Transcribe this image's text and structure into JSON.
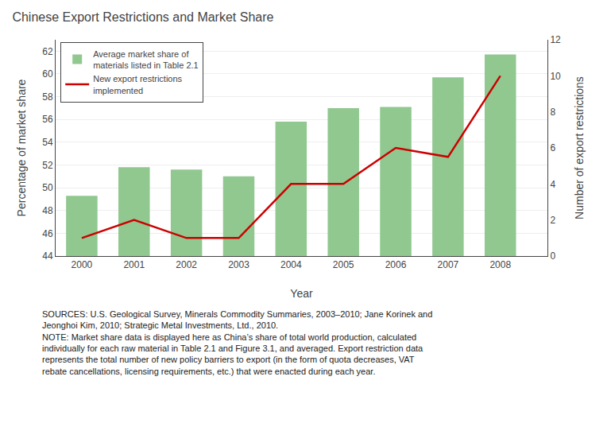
{
  "chart_data": {
    "type": "bar",
    "title": "Chinese Export Restrictions and Market Share",
    "x": [
      2000,
      2001,
      2002,
      2003,
      2004,
      2005,
      2006,
      2007,
      2008
    ],
    "series": [
      {
        "name": "Average market share of\nmaterials listed in Table 2.1",
        "type": "bar",
        "color": "#90C890",
        "values": [
          49.3,
          51.8,
          51.6,
          51.0,
          55.8,
          57.0,
          57.1,
          59.7,
          61.7
        ]
      },
      {
        "name": "New export restrictions\nimplemented",
        "type": "line",
        "axis": "y2",
        "color": "#CC0000",
        "values": [
          1.0,
          2.0,
          1.0,
          1.0,
          4.0,
          4.0,
          6.0,
          5.5,
          10.0
        ]
      }
    ],
    "xlabel": "Year",
    "ylabel": "Percentage of market share",
    "y2label": "Number of export restrictions",
    "xlim": [
      1999.5,
      2008.9
    ],
    "xticks": [
      2000,
      2001,
      2002,
      2003,
      2004,
      2005,
      2006,
      2007,
      2008
    ],
    "ylim": [
      44,
      63
    ],
    "yticks": [
      44,
      46,
      48,
      50,
      52,
      54,
      56,
      58,
      60,
      62
    ],
    "y2lim": [
      0,
      12
    ],
    "y2ticks": [
      0,
      2,
      4,
      6,
      8,
      10,
      12
    ],
    "grid": true,
    "legend": "upper left",
    "annotations": [
      "SOURCES: U.S. Geological Survey, Minerals Commodity Summaries, 2003–2010; Jane Korinek and",
      "Jeonghoi Kim, 2010; Strategic Metal Investments, Ltd., 2010.",
      "NOTE: Market share data is displayed here as China’s share of total world production, calculated",
      "individually for each raw material in Table 2.1 and Figure 3.1, and averaged. Export restriction data",
      "represents the total number of new policy barriers to export (in the form of quota decreases, VAT",
      "rebate cancellations, licensing requirements, etc.) that were enacted during each year."
    ]
  }
}
